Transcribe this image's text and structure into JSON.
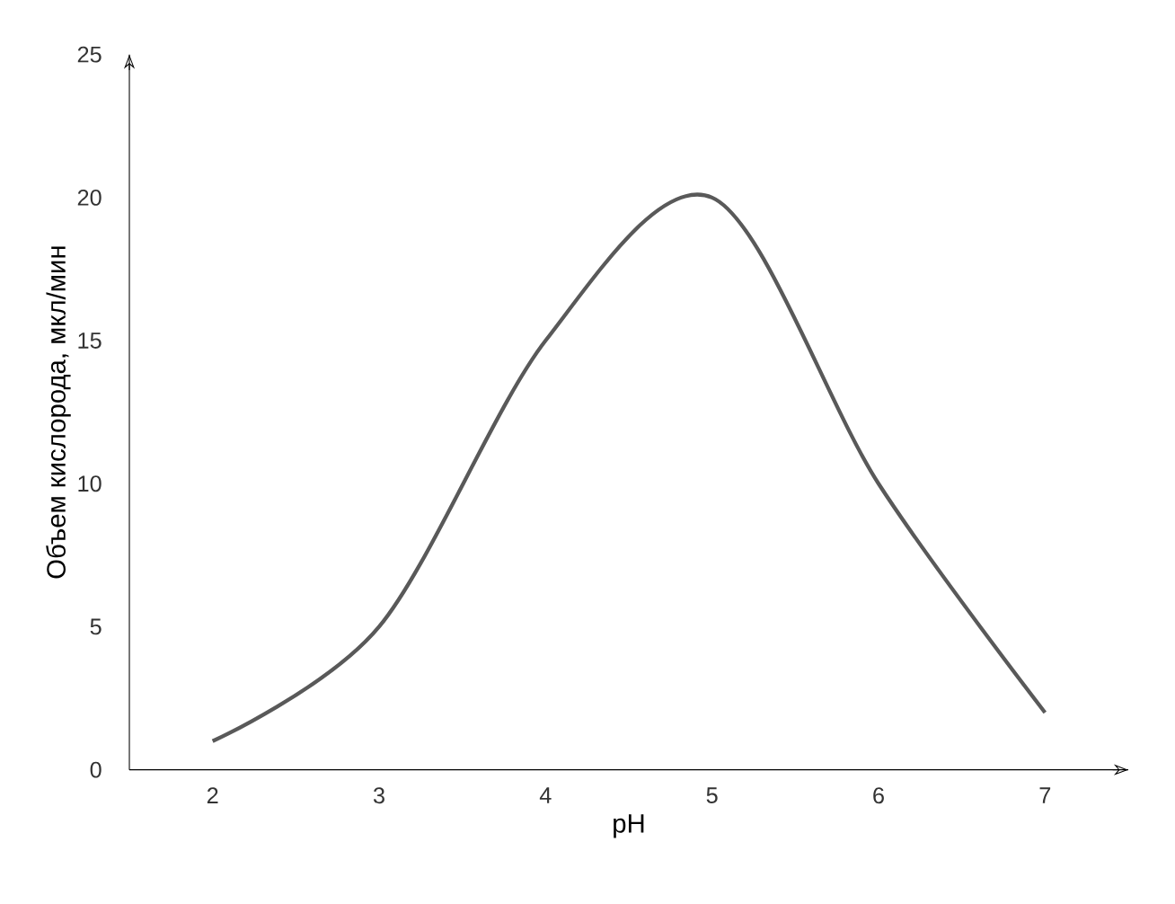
{
  "chart_data": {
    "type": "line",
    "xlabel": "pH",
    "ylabel": "Объем кислорода, мкл/мин",
    "x": [
      2,
      3,
      4,
      5,
      6,
      7
    ],
    "values": [
      1,
      5,
      15,
      20,
      10,
      2
    ],
    "color": "#595959",
    "xlim": [
      1.5,
      7.5
    ],
    "ylim": [
      0,
      25
    ],
    "xticks": [
      2,
      3,
      4,
      5,
      6,
      7
    ],
    "yticks": [
      0,
      5,
      10,
      15,
      20,
      25
    ],
    "grid": false,
    "marker": "none",
    "line_style": "solid"
  }
}
